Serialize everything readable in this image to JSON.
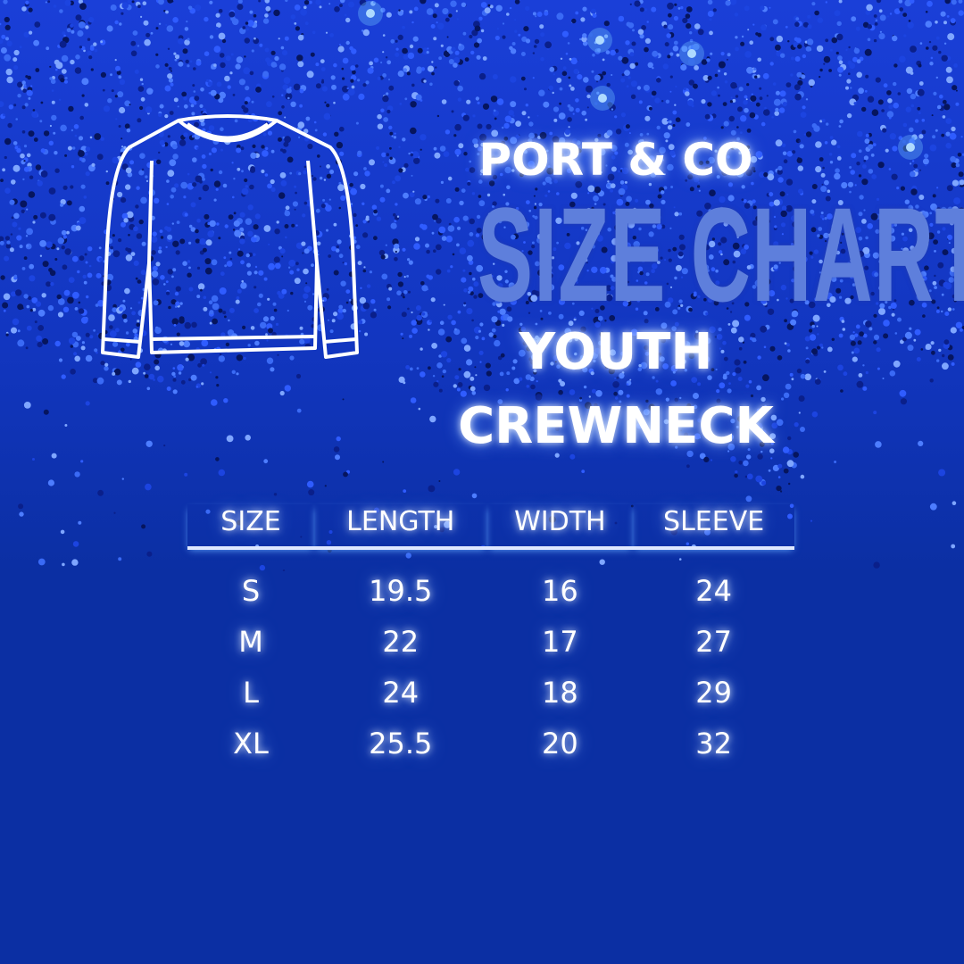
{
  "header": {
    "brand": "PORT & CO",
    "title": "SIZE CHART",
    "subtitle_line1": "YOUTH",
    "subtitle_line2": "CREWNECK"
  },
  "icons": {
    "garment": "crewneck-sweatshirt-outline-icon"
  },
  "colors": {
    "background": "#0b2fa3",
    "title": "#5e7fdc",
    "text": "#ffffff"
  },
  "table": {
    "headers": [
      "SIZE",
      "LENGTH",
      "WIDTH",
      "SLEEVE"
    ],
    "rows": [
      [
        "S",
        "19.5",
        "16",
        "24"
      ],
      [
        "M",
        "22",
        "17",
        "27"
      ],
      [
        "L",
        "24",
        "18",
        "29"
      ],
      [
        "XL",
        "25.5",
        "20",
        "32"
      ]
    ]
  }
}
